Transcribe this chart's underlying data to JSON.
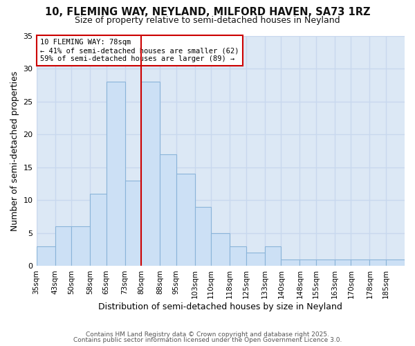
{
  "title": "10, FLEMING WAY, NEYLAND, MILFORD HAVEN, SA73 1RZ",
  "subtitle": "Size of property relative to semi-detached houses in Neyland",
  "xlabel": "Distribution of semi-detached houses by size in Neyland",
  "ylabel": "Number of semi-detached properties",
  "bin_edges": [
    35,
    43,
    50,
    58,
    65,
    73,
    80,
    88,
    95,
    103,
    110,
    118,
    125,
    133,
    140,
    148,
    155,
    163,
    170,
    178,
    185,
    193
  ],
  "values": [
    3,
    6,
    6,
    11,
    28,
    13,
    28,
    17,
    14,
    9,
    5,
    3,
    2,
    3,
    1,
    1,
    1,
    1,
    1,
    1,
    1
  ],
  "bin_labels": [
    "35sqm",
    "43sqm",
    "50sqm",
    "58sqm",
    "65sqm",
    "73sqm",
    "80sqm",
    "88sqm",
    "95sqm",
    "103sqm",
    "110sqm",
    "118sqm",
    "125sqm",
    "133sqm",
    "140sqm",
    "148sqm",
    "155sqm",
    "163sqm",
    "170sqm",
    "178sqm",
    "185sqm"
  ],
  "bar_color": "#cce0f5",
  "bar_edge_color": "#8ab4d9",
  "ref_line_x": 80,
  "ref_line_color": "#cc0000",
  "annotation_title": "10 FLEMING WAY: 78sqm",
  "annotation_line1": "← 41% of semi-detached houses are smaller (62)",
  "annotation_line2": "59% of semi-detached houses are larger (89) →",
  "annotation_box_color": "#cc0000",
  "background_color": "#dce8f5",
  "grid_color": "#c8d8ee",
  "ylim": [
    0,
    35
  ],
  "yticks": [
    0,
    5,
    10,
    15,
    20,
    25,
    30,
    35
  ],
  "footer_line1": "Contains HM Land Registry data © Crown copyright and database right 2025.",
  "footer_line2": "Contains public sector information licensed under the Open Government Licence 3.0.",
  "title_fontsize": 10.5,
  "subtitle_fontsize": 9,
  "xlabel_fontsize": 9,
  "ylabel_fontsize": 9,
  "tick_fontsize": 7.5,
  "footer_fontsize": 6.5
}
